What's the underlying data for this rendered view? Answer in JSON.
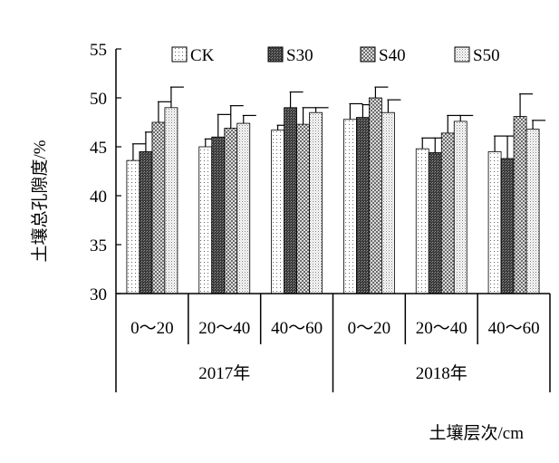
{
  "chart_data": {
    "type": "bar",
    "title": "",
    "ylabel": "土壤总孔隙度/%",
    "xlabel": "土壤层次/cm",
    "ylim": [
      30,
      55
    ],
    "yticks": [
      "30",
      "35",
      "40",
      "45",
      "50",
      "55"
    ],
    "legend_position": "top",
    "series": [
      {
        "name": "CK",
        "pattern": "sparse-dots",
        "values": [
          43.6,
          45.0,
          46.7,
          47.8,
          44.8,
          44.5
        ],
        "errors": [
          1.7,
          0.8,
          0.5,
          1.6,
          1.1,
          1.6
        ]
      },
      {
        "name": "S30",
        "pattern": "dense-dark",
        "values": [
          44.5,
          46.0,
          49.0,
          48.0,
          44.4,
          43.8
        ],
        "errors": [
          2.0,
          2.3,
          1.6,
          1.3,
          1.5,
          2.3
        ]
      },
      {
        "name": "S40",
        "pattern": "cross-hatch",
        "values": [
          47.5,
          46.9,
          47.3,
          50.0,
          46.4,
          48.1
        ],
        "errors": [
          2.1,
          2.3,
          1.7,
          1.1,
          1.8,
          2.3
        ]
      },
      {
        "name": "S50",
        "pattern": "fine-dots",
        "values": [
          49.0,
          47.4,
          48.5,
          48.5,
          47.6,
          46.8
        ],
        "errors": [
          2.1,
          0.8,
          0.5,
          1.3,
          0.6,
          0.9
        ]
      }
    ],
    "groups": [
      {
        "year": "2017年",
        "layers": [
          "0～20",
          "20～40",
          "40～60"
        ]
      },
      {
        "year": "2018年",
        "layers": [
          "0～20",
          "20～40",
          "40～60"
        ]
      }
    ]
  }
}
